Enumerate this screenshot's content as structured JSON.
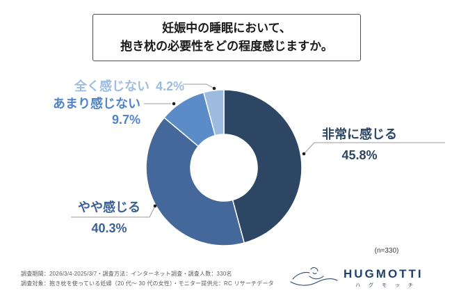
{
  "title": {
    "line1": "妊娠中の睡眠において、",
    "line2": "抱き枕の必要性をどの程度感じますか。"
  },
  "chart_data": {
    "type": "pie",
    "subtype": "donut",
    "title": "妊娠中の睡眠において、抱き枕の必要性をどの程度感じますか。",
    "categories": [
      "非常に感じる",
      "やや感じる",
      "あまり感じない",
      "全く感じない"
    ],
    "values": [
      45.8,
      40.3,
      9.7,
      4.2
    ],
    "unit": "%",
    "colors": [
      "#2c4663",
      "#45689a",
      "#5b8cc8",
      "#9cbbdf"
    ],
    "start_angle": "12-o-clock, clockwise",
    "legend_position": "callout-labels",
    "sample_size": "(n=330)"
  },
  "callouts": {
    "hijou": {
      "label": "非常に感じる",
      "value": "45.8%",
      "color": "#2b4565"
    },
    "yaya": {
      "label": "やや感じる",
      "value": "40.3%",
      "color": "#3b6097"
    },
    "amari": {
      "label": "あまり感じない",
      "value": "9.7%",
      "color": "#4f84c6"
    },
    "zenkaku": {
      "label": "全く感じない",
      "value": "4.2%",
      "color": "#9dbce2"
    }
  },
  "n_note": "(n=330)",
  "footnote": {
    "line1": "調査期間：2026/3/4-2025/3/7・調査方法：インターネット調査・調査人数：330名",
    "line2": "調査対象：抱き枕を使っている妊婦（20 代～ 30 代の女性）・モニター提供元：RC リサーチデータ"
  },
  "brand": {
    "name": "HUGMOTTI",
    "kana": "ハ グ モ ッ チ",
    "color": "#24416b"
  }
}
